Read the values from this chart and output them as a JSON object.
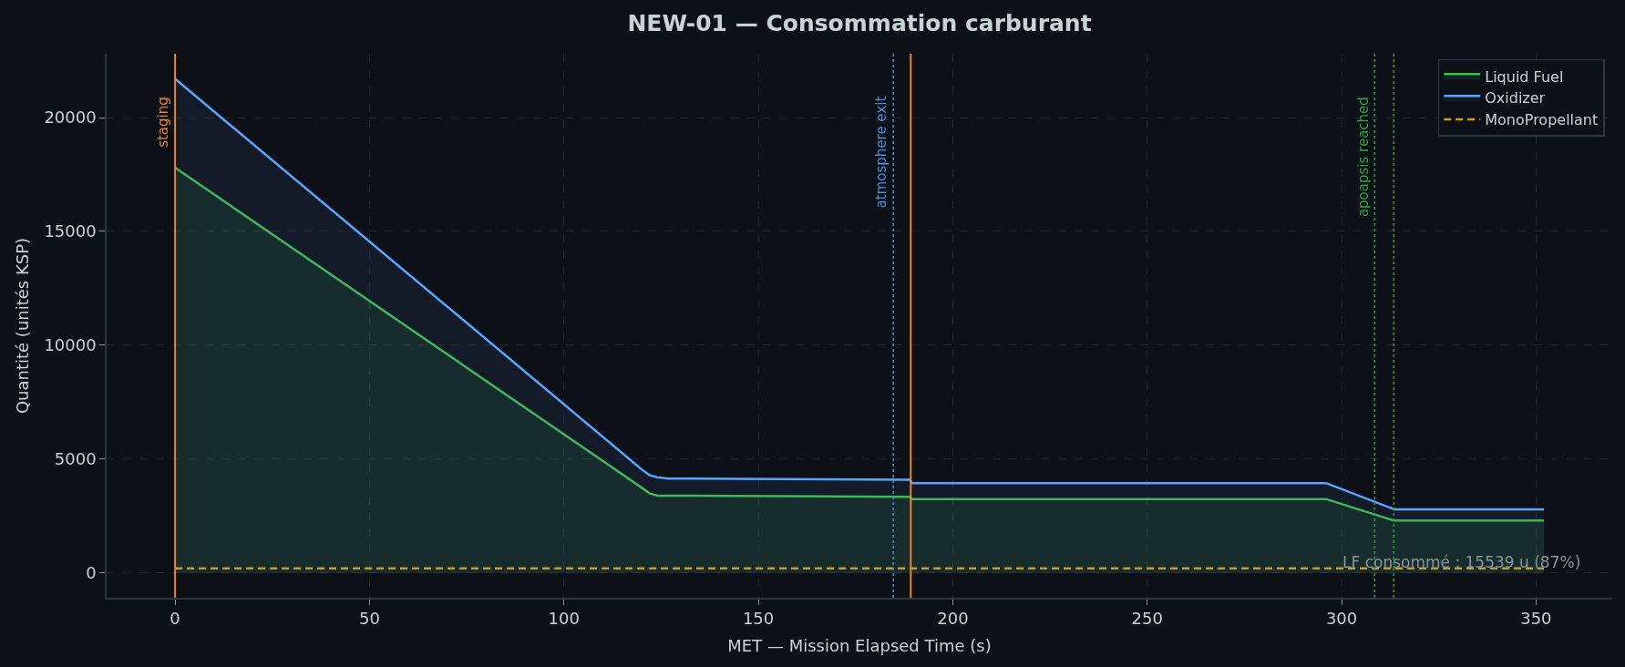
{
  "chart_data": {
    "type": "area",
    "title": "NEW-01 — Consommation carburant",
    "xlabel": "MET — Mission Elapsed Time (s)",
    "ylabel": "Quantité (unités KSP)",
    "series": [
      {
        "name": "Liquid Fuel",
        "color": "#3fb950",
        "x": [
          0,
          120,
          122,
          124,
          127,
          189,
          189.5,
          296,
          313.5,
          352
        ],
        "values": [
          17800,
          3750,
          3500,
          3400,
          3400,
          3350,
          3250,
          3250,
          2300,
          2300
        ]
      },
      {
        "name": "Oxidizer",
        "color": "#58a6ff",
        "x": [
          0,
          120,
          122,
          124,
          127,
          189,
          189.5,
          296,
          313.5,
          352
        ],
        "values": [
          21700,
          4550,
          4300,
          4200,
          4150,
          4100,
          3950,
          3950,
          2800,
          2800
        ]
      },
      {
        "name": "MonoPropellant",
        "type": "line",
        "color": "#d29922",
        "line_style": "dashed",
        "x": [
          0,
          352
        ],
        "values": [
          200,
          200
        ]
      }
    ],
    "xlim": [
      -17.6,
      369.6
    ],
    "xticks": [
      0,
      50,
      100,
      150,
      200,
      250,
      300,
      350
    ],
    "ylim": [
      -1086,
      22801
    ],
    "yticks": [
      0,
      5000,
      10000,
      15000,
      20000
    ],
    "ref_lines": [
      {
        "axis": "x",
        "value": 0,
        "label": "staging",
        "color": "#e8823a",
        "line_style": "solid"
      },
      {
        "axis": "x",
        "value": 184.7,
        "label": "atmosphere exit",
        "color": "#4a8fd8",
        "line_style": "dotted"
      },
      {
        "axis": "x",
        "value": 189.2,
        "color": "#e8823a",
        "line_style": "solid"
      },
      {
        "axis": "x",
        "value": 308.5,
        "label": "apoapsis reached",
        "color": "#2ea043",
        "line_style": "dotted"
      },
      {
        "axis": "x",
        "value": 313.4,
        "color": "#2ea043",
        "line_style": "dotted"
      }
    ],
    "annotations": [
      "LF consommé : 15539 u (87%)"
    ],
    "grid": true,
    "legend": "top right",
    "line_style": "solid"
  }
}
